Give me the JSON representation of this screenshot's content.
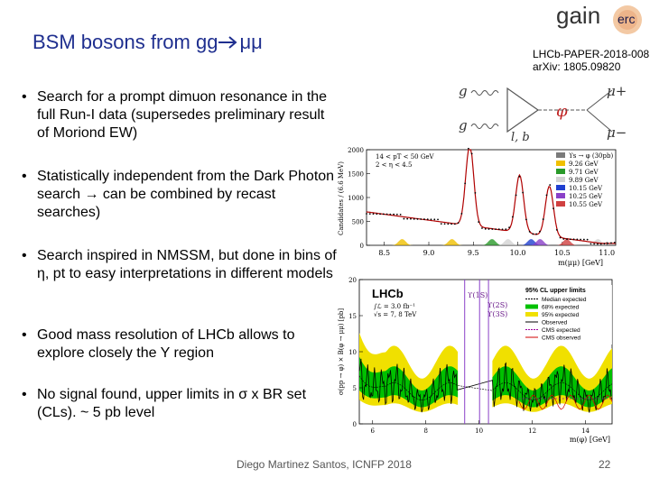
{
  "slide": {
    "title_pre": "BSM bosons from gg",
    "title_post": "μμ",
    "paper_id": "LHCb-PAPER-2018-008",
    "arxiv": "arXiv: 1805.09820",
    "bullets": [
      {
        "pre": "Search for a prompt dimuon resonance in the full Run-I data (supersedes preliminary result of Moriond  EW)",
        "arrow": "",
        "post": ""
      },
      {
        "pre": "Statistically independent from the Dark Photon search ",
        "arrow": "→",
        "post": " can be combined by recast searches)"
      },
      {
        "pre": "Search inspired in NMSSM, but done in bins of η, pt to easy interpretations in different models",
        "arrow": "",
        "post": ""
      },
      {
        "pre": "Good mass resolution of LHCb allows to explore closely the Y region",
        "arrow": "",
        "post": ""
      },
      {
        "pre": "No signal found, upper limits in σ x BR set (CLs). ~ 5 pb level",
        "arrow": "",
        "post": ""
      }
    ],
    "footer": "Diego Martinez Santos, ICNFP 2018",
    "page": "22"
  },
  "logo": {
    "gain": "gain",
    "erc": "erc"
  },
  "feynman": {
    "g1": "g",
    "g2": "g",
    "phi": "φ",
    "mu_plus": "μ+",
    "mu_minus": "μ−",
    "lb": "l, b"
  },
  "chart_data": [
    {
      "type": "line",
      "ylabel": "Candidates / (6.6 MeV)",
      "xlabel": "m(μμ) [GeV]",
      "xticks": [
        "8.5",
        "9.0",
        "9.5",
        "10.0",
        "10.5",
        "11.0"
      ],
      "yticks": [
        "0",
        "500",
        "1000",
        "1500",
        "2000"
      ],
      "legend_header": [
        "14 < pT < 50 GeV",
        "2 < η < 4.5"
      ],
      "legend": [
        {
          "label": "ϒs → φ (30pb)",
          "color": "#7a7a7a"
        },
        {
          "label": "9.26 GeV",
          "color": "#f0c000"
        },
        {
          "label": "9.71 GeV",
          "color": "#2a9a2a"
        },
        {
          "label": "9.89 GeV",
          "color": "#d3d3d3"
        },
        {
          "label": "10.15 GeV",
          "color": "#2040d0"
        },
        {
          "label": "10.25 GeV",
          "color": "#8a40c8"
        },
        {
          "label": "10.55 GeV",
          "color": "#d04040"
        }
      ],
      "ylim": [
        0,
        2000
      ],
      "xlim": [
        8.3,
        11.1
      ]
    },
    {
      "type": "line",
      "ylabel": "σ(pp → φ) × B(φ → μμ) [pb]",
      "xlabel": "m(φ) [GeV]",
      "xticks": [
        "6",
        "8",
        "10",
        "12",
        "14"
      ],
      "yticks": [
        "0",
        "5",
        "10",
        "15",
        "20"
      ],
      "experiment": "LHCb",
      "lumi": [
        "∫ℒ = 3.0 fb⁻¹",
        "√s = 7, 8 TeV"
      ],
      "resonance_labels": [
        "ϒ(1S)",
        "ϒ(2S)",
        "ϒ(3S)"
      ],
      "legend_title": "95% CL upper limits",
      "legend": [
        {
          "label": "Median expected",
          "color": "#000000"
        },
        {
          "label": "68% expected",
          "color": "#00c000"
        },
        {
          "label": "95% expected",
          "color": "#f0e000"
        },
        {
          "label": "Observed",
          "color": "#000000"
        },
        {
          "label": "CMS expected",
          "color": "#a000a0"
        },
        {
          "label": "CMS observed",
          "color": "#d00000"
        }
      ],
      "ylim": [
        0,
        20
      ],
      "xlim": [
        5.5,
        15
      ]
    }
  ]
}
